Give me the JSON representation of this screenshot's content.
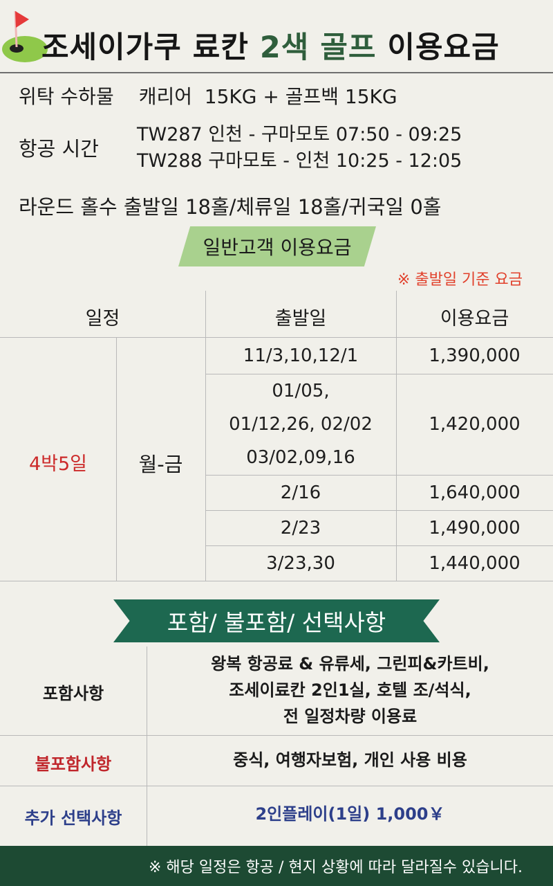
{
  "header": {
    "title_part1": "조세이가쿠 료칸 ",
    "title_accent": "2색 골프",
    "title_part2": " 이용요금"
  },
  "info": {
    "luggage_label": "위탁 수하물",
    "luggage_value": "캐리어  15KG + 골프백 15KG",
    "flight_label": "항공 시간",
    "flight_1": "TW287 인천 - 구마모토 07:50 - 09:25",
    "flight_2": "TW288 구마모토 - 인천 10:25 - 12:05",
    "rounds": "라운드 홀수 출발일 18홀/체류일 18홀/귀국일 0홀"
  },
  "pricing": {
    "section_title": "일반고객 이용요금",
    "note": "※ 출발일 기준 요금",
    "headers": {
      "schedule": "일정",
      "departure": "출발일",
      "price": "이용요금"
    },
    "stay": "4박5일",
    "days": "월-금",
    "rows": [
      {
        "dates": [
          "11/3,10,12/1"
        ],
        "price": "1,390,000"
      },
      {
        "dates": [
          "01/05,",
          "01/12,26, 02/02",
          "03/02,09,16"
        ],
        "price": "1,420,000"
      },
      {
        "dates": [
          "2/16"
        ],
        "price": "1,640,000"
      },
      {
        "dates": [
          "2/23"
        ],
        "price": "1,490,000"
      },
      {
        "dates": [
          "3/23,30"
        ],
        "price": "1,440,000"
      }
    ]
  },
  "inclusions": {
    "section_title": "포함/ 불포함/ 선택사항",
    "included_label": "포함사항",
    "included_lines": [
      "왕복 항공료 & 유류세, 그린피&카트비,",
      "조세이료칸 2인1실, 호텔 조/석식,",
      "전 일정차량 이용료"
    ],
    "excluded_label": "불포함사항",
    "excluded_text": "중식, 여행자보험, 개인 사용 비용",
    "optional_label": "추가 선택사항",
    "optional_text": "2인플레이(1일) 1,000￥"
  },
  "footer": {
    "note": "※ 해당 일정은 항공 / 현지 상황에 따라 달라질수 있습니다."
  },
  "colors": {
    "background": "#f1f0ea",
    "title_accent": "#2f5e3c",
    "ribbon_light": "#a9d18e",
    "ribbon_dark": "#1d6850",
    "stay_red": "#cc2a2a",
    "note_orange": "#e1402b",
    "excluded_red": "#c0262b",
    "optional_blue": "#2d3f8a",
    "footer_green": "#1d4a33"
  },
  "icons": {
    "logo": "golf-flag-icon"
  }
}
